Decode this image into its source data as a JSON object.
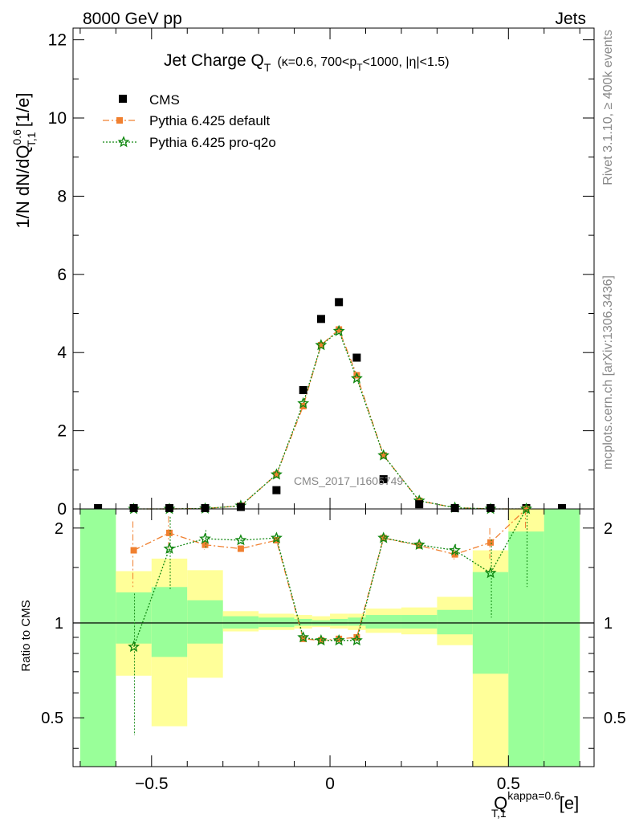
{
  "header": {
    "energy": "8000 GeV pp",
    "process": "Jets"
  },
  "side_labels": {
    "rivet": "Rivet 3.1.10, ≥ 400k events",
    "mcplots": "mcplots.cern.ch [arXiv:1306.3436]"
  },
  "analysis_id": "CMS_2017_I1605749",
  "chart_data": [
    {
      "type": "scatter",
      "title_main": "Jet Charge Q",
      "title_sub": "T",
      "title_detail": "(κ=0.6, 700<p",
      "title_detail_sub": "T",
      "title_detail_rest": "<1000, |η|<1.5)",
      "ylabel": "1/N dN/dQ",
      "ylabel_sup": "0.6",
      "ylabel_sub": "T,1",
      "ylabel_unit": " [1/e]",
      "xlim": [
        -0.72,
        0.74
      ],
      "ylim": [
        0,
        12.3
      ],
      "yticks": [
        0,
        2,
        4,
        6,
        8,
        10,
        12
      ],
      "legend_position": "top-left",
      "series": [
        {
          "name": "CMS",
          "color": "#000000",
          "marker": "square",
          "x": [
            -0.65,
            -0.55,
            -0.45,
            -0.35,
            -0.25,
            -0.15,
            -0.075,
            -0.025,
            0.025,
            0.075,
            0.15,
            0.25,
            0.35,
            0.45,
            0.55,
            0.65
          ],
          "y": [
            0.0,
            0.0,
            0.0,
            0.01,
            0.05,
            0.48,
            3.04,
            4.86,
            5.29,
            3.87,
            0.76,
            0.12,
            0.02,
            0.0,
            0.0,
            0.0
          ]
        },
        {
          "name": "Pythia 6.425 default",
          "color": "#f08030",
          "marker": "square-small",
          "dash": "8,3,2,3",
          "x": [
            -0.55,
            -0.45,
            -0.35,
            -0.25,
            -0.15,
            -0.075,
            -0.025,
            0.025,
            0.075,
            0.15,
            0.25,
            0.35,
            0.45,
            0.55
          ],
          "y": [
            0.0,
            0.0,
            0.01,
            0.08,
            0.88,
            2.63,
            4.19,
            4.59,
            3.42,
            1.37,
            0.21,
            0.03,
            0.0,
            0.0
          ]
        },
        {
          "name": "Pythia 6.425 pro-q2o",
          "color": "#118811",
          "marker": "star",
          "dash": "2,2",
          "x": [
            -0.55,
            -0.45,
            -0.35,
            -0.25,
            -0.15,
            -0.075,
            -0.025,
            0.025,
            0.075,
            0.15,
            0.25,
            0.35,
            0.45,
            0.55
          ],
          "y": [
            0.0,
            0.0,
            0.01,
            0.08,
            0.88,
            2.7,
            4.19,
            4.55,
            3.34,
            1.37,
            0.21,
            0.03,
            0.0,
            0.0
          ]
        }
      ]
    },
    {
      "type": "line",
      "ylabel": "Ratio to CMS",
      "xlabel": "Q",
      "xlabel_sup": "kappa=0.6",
      "xlabel_sub": "T,1",
      "xlabel_unit": " [e]",
      "xlim": [
        -0.72,
        0.74
      ],
      "ylim": [
        0.35,
        2.3
      ],
      "yscale": "log",
      "xticks": [
        -0.5,
        0,
        0.5
      ],
      "xtick_labels": [
        "−0.5",
        "0",
        "0.5"
      ],
      "yticks": [
        0.5,
        1,
        2
      ],
      "ytick_labels": [
        "0.5",
        "1",
        "2"
      ],
      "bands": [
        {
          "x0": -0.7,
          "x1": -0.6,
          "y_lo": 0.35,
          "y_hi": 2.3,
          "g_lo": 0.35,
          "g_hi": 2.3
        },
        {
          "x0": -0.6,
          "x1": -0.5,
          "y_lo": 0.68,
          "y_hi": 1.46,
          "g_lo": 0.86,
          "g_hi": 1.25
        },
        {
          "x0": -0.5,
          "x1": -0.4,
          "y_lo": 0.47,
          "y_hi": 1.6,
          "g_lo": 0.78,
          "g_hi": 1.3
        },
        {
          "x0": -0.4,
          "x1": -0.3,
          "y_lo": 0.67,
          "y_hi": 1.47,
          "g_lo": 0.86,
          "g_hi": 1.18
        },
        {
          "x0": -0.3,
          "x1": -0.2,
          "y_lo": 0.94,
          "y_hi": 1.09,
          "g_lo": 0.96,
          "g_hi": 1.05
        },
        {
          "x0": -0.2,
          "x1": -0.1,
          "y_lo": 0.95,
          "y_hi": 1.07,
          "g_lo": 0.97,
          "g_hi": 1.04
        },
        {
          "x0": -0.1,
          "x1": -0.05,
          "y_lo": 0.96,
          "y_hi": 1.06,
          "g_lo": 0.98,
          "g_hi": 1.03
        },
        {
          "x0": -0.05,
          "x1": 0.0,
          "y_lo": 0.97,
          "y_hi": 1.05,
          "g_lo": 0.98,
          "g_hi": 1.02
        },
        {
          "x0": 0.0,
          "x1": 0.05,
          "y_lo": 0.96,
          "y_hi": 1.07,
          "g_lo": 0.98,
          "g_hi": 1.03
        },
        {
          "x0": 0.05,
          "x1": 0.1,
          "y_lo": 0.95,
          "y_hi": 1.07,
          "g_lo": 0.98,
          "g_hi": 1.04
        },
        {
          "x0": 0.1,
          "x1": 0.2,
          "y_lo": 0.93,
          "y_hi": 1.11,
          "g_lo": 0.96,
          "g_hi": 1.06
        },
        {
          "x0": 0.2,
          "x1": 0.3,
          "y_lo": 0.92,
          "y_hi": 1.12,
          "g_lo": 0.96,
          "g_hi": 1.06
        },
        {
          "x0": 0.3,
          "x1": 0.4,
          "y_lo": 0.85,
          "y_hi": 1.21,
          "g_lo": 0.92,
          "g_hi": 1.1
        },
        {
          "x0": 0.4,
          "x1": 0.5,
          "y_lo": 0.35,
          "y_hi": 1.7,
          "g_lo": 0.69,
          "g_hi": 1.45
        },
        {
          "x0": 0.5,
          "x1": 0.6,
          "y_lo": 0.35,
          "y_hi": 2.3,
          "g_lo": 0.35,
          "g_hi": 1.95
        },
        {
          "x0": 0.6,
          "x1": 0.7,
          "y_lo": 0.35,
          "y_hi": 2.3,
          "g_lo": 0.35,
          "g_hi": 2.3
        }
      ],
      "band_colors": {
        "yellow": "#ffff99",
        "green": "#99ff99"
      },
      "series": [
        {
          "name": "Pythia 6.425 default",
          "color": "#f08030",
          "dash": "8,3,2,3",
          "x": [
            -0.55,
            -0.45,
            -0.35,
            -0.25,
            -0.15,
            -0.075,
            -0.025,
            0.025,
            0.075,
            0.15,
            0.25,
            0.35,
            0.45,
            0.55
          ],
          "y": [
            1.7,
            1.93,
            1.77,
            1.72,
            1.83,
            0.89,
            0.88,
            0.89,
            0.9,
            1.86,
            1.76,
            1.65,
            1.8,
            2.3
          ],
          "err": [
            0.4,
            0.25,
            0.06,
            0.04,
            0.03,
            0.01,
            0.01,
            0.01,
            0.01,
            0.02,
            0.03,
            0.06,
            0.2,
            0.3
          ]
        },
        {
          "name": "Pythia 6.425 pro-q2o",
          "color": "#118811",
          "dash": "2,2",
          "x": [
            -0.55,
            -0.45,
            -0.35,
            -0.25,
            -0.15,
            -0.075,
            -0.025,
            0.025,
            0.075,
            0.15,
            0.25,
            0.35,
            0.45,
            0.55
          ],
          "y": [
            0.84,
            1.72,
            1.85,
            1.83,
            1.86,
            0.9,
            0.88,
            0.88,
            0.88,
            1.86,
            1.77,
            1.7,
            1.44,
            2.3
          ],
          "err": [
            0.4,
            0.45,
            0.12,
            0.05,
            0.03,
            0.01,
            0.01,
            0.01,
            0.01,
            0.02,
            0.04,
            0.08,
            0.4,
            1.0
          ]
        }
      ]
    }
  ]
}
